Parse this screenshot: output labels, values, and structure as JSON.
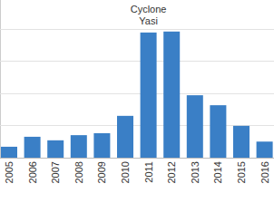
{
  "chart_data": {
    "type": "bar",
    "categories": [
      "2005",
      "2006",
      "2007",
      "2008",
      "2009",
      "2010",
      "2011",
      "2012",
      "2013",
      "2014",
      "2015",
      "2016"
    ],
    "values": [
      0.34,
      0.65,
      0.54,
      0.7,
      0.76,
      1.3,
      3.89,
      3.92,
      1.94,
      1.63,
      0.99,
      0.5
    ],
    "color": "#3a7fc6",
    "ylim": [
      0,
      4.9
    ],
    "yticks": [
      0,
      1,
      2,
      3,
      4
    ],
    "grid": true,
    "tick_labels": "x",
    "annotations": [
      {
        "text": "Cyclone Yasi",
        "x": "2011"
      }
    ]
  }
}
